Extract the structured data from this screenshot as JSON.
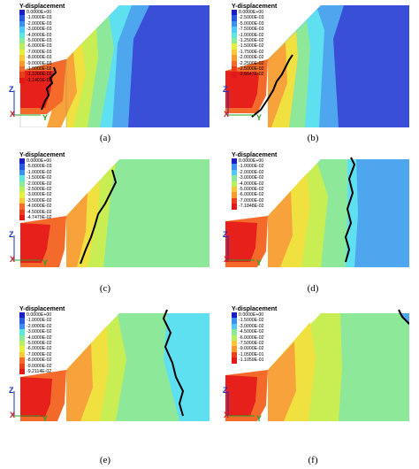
{
  "panels": [
    {
      "caption": "(a)",
      "title": "Y-displacement",
      "values": [
        "0.0000E+00",
        "-1.0000E-03",
        "-2.0000E-03",
        "-3.0000E-03",
        "-4.0000E-03",
        "-5.0000E-03",
        "-6.0000E-03",
        "-7.0000E-03",
        "-8.0000E-03",
        "-9.0000E-03",
        "-1.0000E-02",
        "-1.1000E-02",
        "-1.1401E-02"
      ]
    },
    {
      "caption": "(b)",
      "title": "Y-displacement",
      "values": [
        "0.0000E+00",
        "-2.5000E-03",
        "-5.0000E-03",
        "-7.5000E-03",
        "-1.0000E-02",
        "-1.2500E-02",
        "-1.5000E-02",
        "-1.7500E-02",
        "-2.0000E-02",
        "-2.2500E-02",
        "-2.5000E-02",
        "-2.6647E-02"
      ]
    },
    {
      "caption": "(c)",
      "title": "Y-displacement",
      "values": [
        "0.0000E+00",
        "-5.0000E-03",
        "-1.0000E-02",
        "-1.5000E-02",
        "-2.0000E-02",
        "-2.5000E-02",
        "-3.0000E-02",
        "-3.5000E-02",
        "-4.0000E-02",
        "-4.5000E-02",
        "-4.7479E-02"
      ]
    },
    {
      "caption": "(d)",
      "title": "Y-displacement",
      "values": [
        "0.0000E+00",
        "-1.0000E-02",
        "-2.0000E-02",
        "-3.0000E-02",
        "-4.0000E-02",
        "-5.0000E-02",
        "-6.0000E-02",
        "-7.0000E-02",
        "-7.1848E-02"
      ]
    },
    {
      "caption": "(e)",
      "title": "Y-displacement",
      "values": [
        "0.0000E+00",
        "-1.0000E-02",
        "-2.0000E-02",
        "-3.0000E-02",
        "-4.0000E-02",
        "-5.0000E-02",
        "-6.0000E-02",
        "-7.0000E-02",
        "-8.0000E-02",
        "-9.0000E-02",
        "-9.2114E-02"
      ]
    },
    {
      "caption": "(f)",
      "title": "Y-displacement",
      "values": [
        "0.0000E+00",
        "-1.5000E-02",
        "-3.0000E-02",
        "-4.5000E-02",
        "-6.0000E-02",
        "-7.5000E-02",
        "-9.0000E-02",
        "-1.0500E-01",
        "-1.1059E-01"
      ]
    }
  ],
  "axes": {
    "z": "Z",
    "y": "Y",
    "x": "X"
  },
  "colors": {
    "blue": "#3a4fd8",
    "lightblue": "#4ea6ee",
    "cyan": "#5fe0f0",
    "green": "#8ee89a",
    "lime": "#c8ee54",
    "yellow": "#f0e040",
    "orange": "#f7a23a",
    "deeporange": "#f36a2a",
    "red": "#e8201c",
    "slipline": "#000000"
  }
}
